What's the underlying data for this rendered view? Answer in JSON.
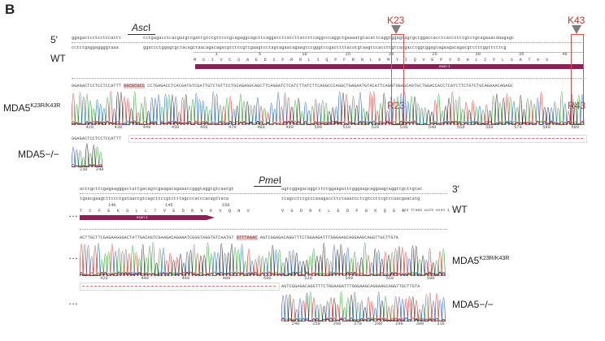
{
  "panel_label": "B",
  "enzymes": {
    "top": {
      "name": "Asc",
      "suffix": "I"
    },
    "bottom": {
      "name": "Pme",
      "suffix": "I"
    }
  },
  "ends": {
    "five_prime": "5'",
    "three_prime": "3'"
  },
  "ellipsis": "…",
  "rows": {
    "wt": "WT",
    "mda5_mut": {
      "base": "MDA5",
      "sup": "K23R/K43R"
    },
    "mda5_ko": "MDA5−/−"
  },
  "mutations": {
    "k23": "K23",
    "k43": "K43",
    "r23": "R23",
    "r43": "R43"
  },
  "exon_label": "exon 1",
  "in_frame_note": "(In frame with exon 1)",
  "sequences": {
    "top_wt_a": "ggagactcctcctccattt",
    "top_wt_b": "cctgagacctcacgatgtcgattgtctgttcctgcagaggcagcttcaggatctcatcttatcttcaggcccaggctgaaaatgtacattcaggtggagcagtgctggaccacctcatcttctgtctgcagaaacdaagagc",
    "top_wt_c": "cctctgaggaggggtaaa",
    "top_wt_d": "ggactctggagtgctacagctaacagacagacgtctccgtcgaagtcctagtagaatagaagtccgggtccgacttttacatgtaagtccaccttgtcacgacctggtggagtagaagacagacgtctttggttcttcg",
    "top_prot": "M S I V C S A E D S F R N L I Q P F R N L K M Y I Q V E P V D H L I F L S A T K S",
    "mut_a": "GGAGACTCCTCCTCCATTT",
    "mut_hl": "GGCGCGCC",
    "mut_b": "CCTGAGACCTCACGATGTCGATTGTCTGTTCCTGCAGAGGCAGCTTCAGGATCTCATCTTATCTTCAGGCCCAGGCTGAGAATGTACATTCAGGTGGAGCAGTGCTGGACCACCTCATCTTCTGTCTGCAGAAACAGAGC",
    "ko_a": "GGAGACTCCTCCTCCATTT",
    "bot_wt_a": "acttgcttcgagaagggactattgacagtcgaagacagaaatcgggtaggtgtcaatgt",
    "bot_wt_b": "agtcggagacaggtttctggaagatttgggaagcaggaagcaggttgcttgtac",
    "bot_wt_c": "tgaacgaagcttccctgataactgtcagcttctgtctttagcccatccacagttaca",
    "bot_wt_d": "tcagcctctgtccaaagaccttctaaaccctcgtccttcgtccaacgaacatg",
    "bot_prot_a": "T C F E K G L L T V E D R N K V Q N V",
    "bot_prot_b": "V G D R F L E D F G K Q E A G L L V",
    "bot_mut_a": "ACTTGCTTCGAGAAGGGACTATTGACAGTCGAAGACAGAAATCGGGTAGGTGTCAATGT",
    "bot_mut_hl": "GTTTAAAC",
    "bot_mut_b": "AGTCGGAGACAGGTTTCTGGAAGATTTGGGAAGCAGGAAGCAGGTTGCTTGTA",
    "bot_ko": "AGTCGGAGACAGGTTTCTGGAAGATTTGGGAAGCAGGAAGCAGGTTGCTTGTA"
  },
  "ruler": {
    "top_prot": [
      "1",
      "5",
      "10",
      "15",
      "20",
      "25",
      "30",
      "35",
      "40"
    ],
    "bot_prot": [
      "140",
      "145",
      "150"
    ],
    "top_trace": [
      "420",
      "430",
      "440",
      "450",
      "460",
      "470",
      "480",
      "490",
      "500",
      "510",
      "520",
      "530",
      "540",
      "550",
      "560",
      "570",
      "580",
      "590"
    ],
    "ko_trace": [
      "230",
      "240"
    ],
    "bot_trace": [
      "420",
      "440",
      "460",
      "480",
      "500",
      "520",
      "540",
      "560",
      "580"
    ],
    "bot_ko_trace": [
      "240",
      "250",
      "260",
      "270",
      "280",
      "290",
      "300",
      "310"
    ]
  },
  "colors": {
    "exon": "#8b1f56",
    "highlight": "#f4c2c2",
    "mutation_red": "#c0392b",
    "marker_gray": "#7e7e7e",
    "trace_a": "#2ca02c",
    "trace_c": "#1f5fd1",
    "trace_g": "#222222",
    "trace_t": "#e0302a"
  }
}
